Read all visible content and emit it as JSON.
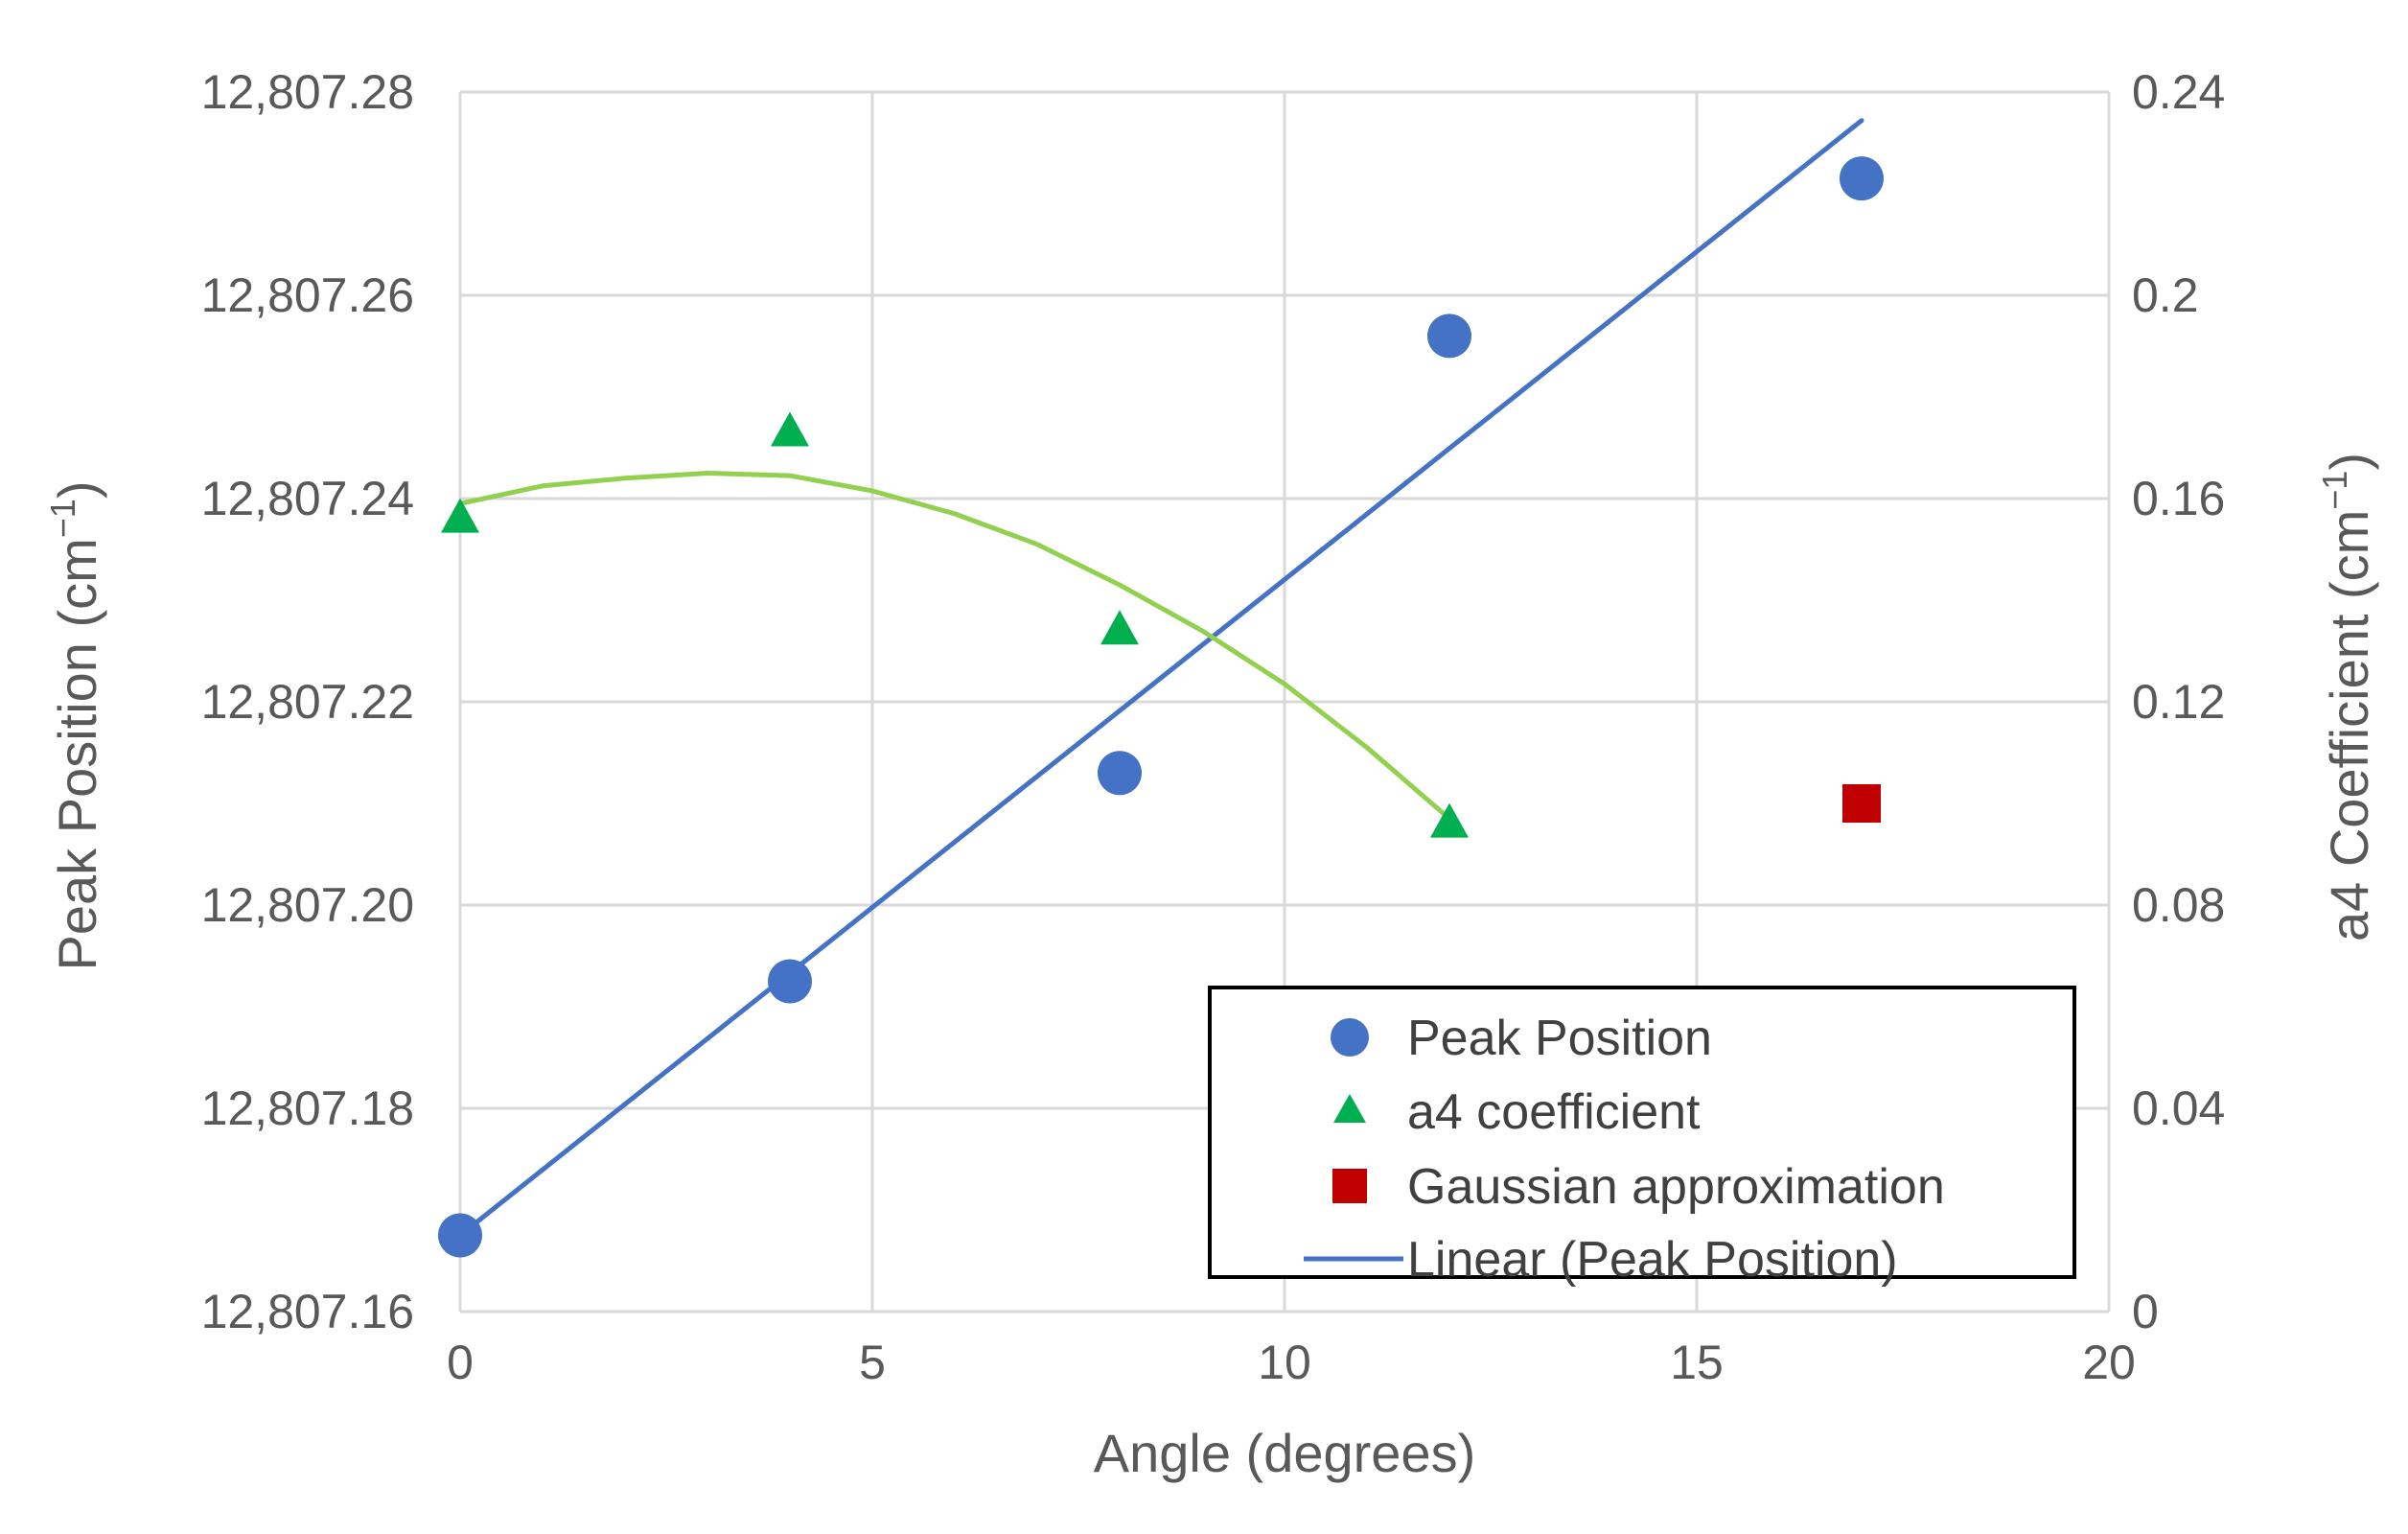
{
  "chart_data": {
    "type": "scatter",
    "title": "",
    "xlabel": "Angle (degrees)",
    "ylabel": "Peak Position (cm",
    "ylabel_superscript": "−1",
    "ylabel_close": ")",
    "y2label": "a4 Coefficient (cm",
    "y2label_superscript": "−1",
    "y2label_close": ")",
    "xlim": [
      0,
      20
    ],
    "ylim": [
      12807.16,
      12807.28
    ],
    "y2lim": [
      0,
      0.24
    ],
    "xticks": [
      0,
      5,
      10,
      15,
      20
    ],
    "xtick_labels": [
      "0",
      "5",
      "10",
      "15",
      "20"
    ],
    "yticks": [
      12807.16,
      12807.18,
      12807.2,
      12807.22,
      12807.24,
      12807.26,
      12807.28
    ],
    "ytick_labels": [
      "12,807.16",
      "12,807.18",
      "12,807.20",
      "12,807.22",
      "12,807.24",
      "12,807.26",
      "12,807.28"
    ],
    "y2ticks": [
      0,
      0.04,
      0.08,
      0.12,
      0.16,
      0.2,
      0.24
    ],
    "y2tick_labels": [
      "0",
      "0.04",
      "0.08",
      "0.12",
      "0.16",
      "0.2",
      "0.24"
    ],
    "grid": true,
    "legend_position": "bottom-right",
    "series": [
      {
        "name": "Peak Position",
        "axis": "left",
        "marker": "circle",
        "color": "#4472C4",
        "x": [
          0,
          4,
          8,
          12,
          17
        ],
        "y": [
          12807.1675,
          12807.1925,
          12807.213,
          12807.256,
          12807.2715
        ]
      },
      {
        "name": "a4 coefficient",
        "axis": "right",
        "marker": "triangle",
        "color": "#00B050",
        "x": [
          0,
          4,
          8,
          12
        ],
        "y": [
          0.156,
          0.173,
          0.134,
          0.096
        ]
      },
      {
        "name": "Gaussian approximation",
        "axis": "right",
        "marker": "square",
        "color": "#C00000",
        "x": [
          17
        ],
        "y": [
          0.1
        ]
      },
      {
        "name": "Linear (Peak Position)",
        "axis": "left",
        "type": "trendline",
        "color": "#4472C4",
        "x": [
          0,
          17
        ],
        "y": [
          12807.1675,
          12807.2772
        ]
      },
      {
        "name": "a4 trend",
        "axis": "right",
        "type": "curve",
        "color": "#92D050",
        "show_in_legend": false,
        "x": [
          0,
          1,
          2,
          3,
          4,
          5,
          6,
          7,
          8,
          9,
          10,
          11,
          12
        ],
        "y": [
          0.159,
          0.1625,
          0.164,
          0.165,
          0.1645,
          0.1615,
          0.157,
          0.151,
          0.143,
          0.134,
          0.1235,
          0.111,
          0.097
        ]
      }
    ]
  }
}
